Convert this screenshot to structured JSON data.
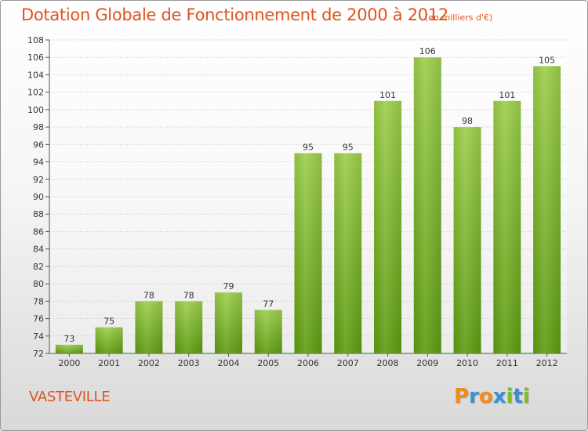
{
  "header": {
    "title": "Dotation Globale de Fonctionnement de 2000 à 2012",
    "subtitle": "(en milliers d'€)"
  },
  "footer": {
    "place": "VASTEVILLE",
    "logo": [
      "P",
      "r",
      "o",
      "x",
      "i",
      "t",
      "i"
    ]
  },
  "colors": {
    "accent": "#e0531d",
    "bar_light": "#9ccf4a",
    "bar_dark": "#5e9c12",
    "logo": [
      "#f28c1a",
      "#3a8fd6",
      "#f28c1a",
      "#3a8fd6",
      "#7cbd2a",
      "#3a8fd6",
      "#7cbd2a"
    ]
  },
  "chart_data": {
    "type": "bar",
    "categories": [
      "2000",
      "2001",
      "2002",
      "2003",
      "2004",
      "2005",
      "2006",
      "2007",
      "2008",
      "2009",
      "2010",
      "2011",
      "2012"
    ],
    "values": [
      73,
      75,
      78,
      78,
      79,
      77,
      95,
      95,
      101,
      106,
      98,
      101,
      105
    ],
    "ylim": [
      72,
      108
    ],
    "yticks": [
      72,
      74,
      76,
      78,
      80,
      82,
      84,
      86,
      88,
      90,
      92,
      94,
      96,
      98,
      100,
      102,
      104,
      106,
      108
    ],
    "grid": true,
    "legend": "none"
  }
}
